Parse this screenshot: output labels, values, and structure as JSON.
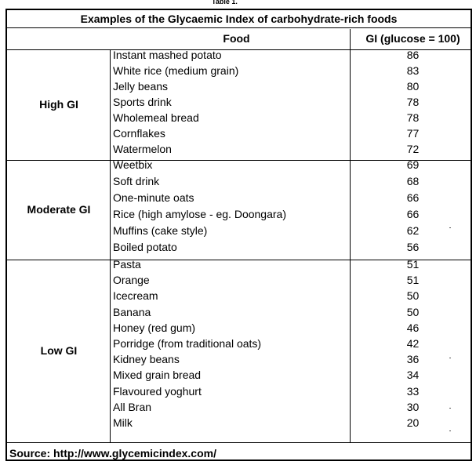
{
  "table": {
    "clipped_heading": "Table 1.",
    "title": "Examples of the Glycaemic Index of carbohydrate-rich foods",
    "col_food": "Food",
    "col_gi": "GI (glucose = 100)",
    "groups": [
      {
        "label": "High GI",
        "rows": [
          {
            "food": "Instant mashed potato",
            "gi": "86"
          },
          {
            "food": "White rice (medium grain)",
            "gi": "83"
          },
          {
            "food": "Jelly beans",
            "gi": "80"
          },
          {
            "food": "Sports drink",
            "gi": "78"
          },
          {
            "food": "Wholemeal bread",
            "gi": "78"
          },
          {
            "food": "Cornflakes",
            "gi": "77"
          },
          {
            "food": "Watermelon",
            "gi": "72"
          }
        ]
      },
      {
        "label": "Moderate GI",
        "rows": [
          {
            "food": "Weetbix",
            "gi": "69"
          },
          {
            "food": "Soft drink",
            "gi": "68"
          },
          {
            "food": "One-minute oats",
            "gi": "66"
          },
          {
            "food": "Rice (high amylose - eg. Doongara)",
            "gi": "66"
          },
          {
            "food": "Muffins (cake style)",
            "gi": "62"
          },
          {
            "food": "Boiled potato",
            "gi": "56"
          }
        ]
      },
      {
        "label": "Low GI",
        "rows": [
          {
            "food": "Pasta",
            "gi": "51"
          },
          {
            "food": "Orange",
            "gi": "51"
          },
          {
            "food": "Icecream",
            "gi": "50"
          },
          {
            "food": "Banana",
            "gi": "50"
          },
          {
            "food": "Honey (red gum)",
            "gi": "46"
          },
          {
            "food": "Porridge (from traditional oats)",
            "gi": "42"
          },
          {
            "food": "Kidney beans",
            "gi": "36"
          },
          {
            "food": "Mixed grain bread",
            "gi": "34"
          },
          {
            "food": "Flavoured yoghurt",
            "gi": "33"
          },
          {
            "food": "All Bran",
            "gi": "30"
          },
          {
            "food": "Milk",
            "gi": "20"
          }
        ]
      }
    ],
    "source": "Source: http://www.glycemicindex.com/"
  }
}
